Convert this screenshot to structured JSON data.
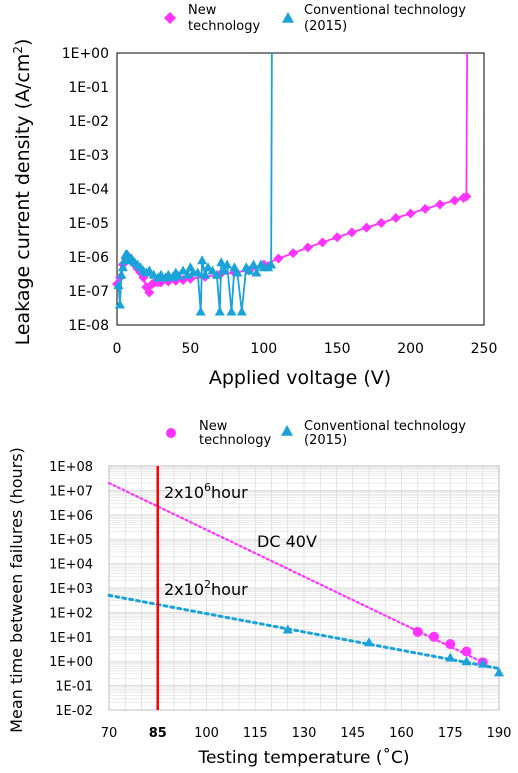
{
  "colors": {
    "new": "#ff33ff",
    "conventional": "#1aa3d9",
    "grid": "#d9d9d9",
    "marker85": "#ff0000"
  },
  "chart_data": [
    {
      "type": "scatter",
      "xlabel": "Applied voltage (V)",
      "ylabel_prefix": "Leakage current density (A/cm",
      "ylabel_sup": "2",
      "ylabel_suffix": ")",
      "xlim": [
        0,
        250
      ],
      "ylim": [
        1e-08,
        1
      ],
      "yscale": "log",
      "xticks": [
        "0",
        "50",
        "100",
        "150",
        "200",
        "250"
      ],
      "yticks": [
        "1E+00",
        "1E-01",
        "1E-02",
        "1E-03",
        "1E-04",
        "1E-05",
        "1E-06",
        "1E-07",
        "1E-08"
      ],
      "grid": false,
      "legend": {
        "placement": "top",
        "entries": [
          {
            "label_line1": "New",
            "label_line2": "technology",
            "marker": "diamond"
          },
          {
            "label_line1": "Conventional technology",
            "label_line2": "(2015)",
            "marker": "triangle"
          }
        ]
      },
      "series": [
        {
          "name": "New technology",
          "x": [
            0,
            2,
            4,
            6,
            8,
            10,
            12,
            14,
            16,
            18,
            20,
            22,
            24,
            26,
            28,
            30,
            35,
            40,
            45,
            50,
            60,
            70,
            80,
            90,
            100,
            110,
            120,
            130,
            140,
            150,
            160,
            170,
            180,
            190,
            200,
            210,
            220,
            230,
            236,
            238,
            238.5
          ],
          "y": [
            1.6e-07,
            2.5e-07,
            6e-07,
            9e-07,
            1e-06,
            8e-07,
            6e-07,
            4.5e-07,
            3.5e-07,
            2.5e-07,
            1.3e-07,
            9e-08,
            1.6e-07,
            1.8e-07,
            1.8e-07,
            1.8e-07,
            1.9e-07,
            2e-07,
            2.1e-07,
            2.3e-07,
            2.6e-07,
            3e-07,
            3.5e-07,
            4e-07,
            6e-07,
            9e-07,
            1.3e-06,
            1.9e-06,
            2.7e-06,
            3.8e-06,
            5.3e-06,
            7.3e-06,
            1e-05,
            1.4e-05,
            1.9e-05,
            2.6e-05,
            3.5e-05,
            4.6e-05,
            5.5e-05,
            6e-05,
            1
          ]
        },
        {
          "name": "Conventional technology (2015)",
          "x": [
            1,
            2,
            3,
            4,
            5,
            6,
            7,
            8,
            9,
            10,
            12,
            14,
            16,
            18,
            20,
            22,
            25,
            28,
            30,
            33,
            35,
            38,
            40,
            42,
            45,
            48,
            50,
            52,
            55,
            57,
            58,
            60,
            62,
            65,
            68,
            70,
            71,
            73,
            75,
            78,
            80,
            82,
            85,
            88,
            90,
            93,
            95,
            98,
            100,
            103,
            105,
            105.5
          ],
          "y": [
            1.5e-07,
            4e-08,
            3e-07,
            5e-07,
            8e-07,
            1.2e-06,
            1.2e-06,
            9e-07,
            8e-07,
            9e-07,
            7e-07,
            6e-07,
            5e-07,
            4e-07,
            3.5e-07,
            4e-07,
            3e-07,
            2.5e-07,
            3e-07,
            2.5e-07,
            3e-07,
            2.6e-07,
            3.5e-07,
            2.8e-07,
            4e-07,
            3e-07,
            5e-07,
            3.5e-07,
            3.5e-07,
            2.5e-08,
            8e-07,
            3e-07,
            5e-07,
            4e-07,
            3e-07,
            2.5e-08,
            7e-07,
            4e-07,
            6e-07,
            2.5e-08,
            5e-07,
            3.5e-07,
            2.5e-08,
            5e-07,
            4e-07,
            6e-07,
            3.5e-07,
            6e-07,
            5e-07,
            5e-07,
            6e-07,
            1
          ]
        }
      ]
    },
    {
      "type": "scatter",
      "xlabel": "Testing temperature (˚C)",
      "ylabel": "Mean time between failures (hours)",
      "xlim": [
        70,
        190
      ],
      "ylim": [
        0.01,
        100000000.0
      ],
      "yscale": "log",
      "xticks": [
        "70",
        "85",
        "100",
        "115",
        "130",
        "145",
        "160",
        "175",
        "190"
      ],
      "highlight_xtick": "85",
      "yticks": [
        "1E+08",
        "1E+07",
        "1E+06",
        "1E+05",
        "1E+04",
        "1E+03",
        "1E+02",
        "1E+01",
        "1E+00",
        "1E-01",
        "1E-02"
      ],
      "grid": true,
      "legend": {
        "placement": "top",
        "entries": [
          {
            "label_line1": "New",
            "label_line2": "technology",
            "marker": "circle"
          },
          {
            "label_line1": "Conventional technology",
            "label_line2": "(2015)",
            "marker": "triangle"
          }
        ]
      },
      "vline_x": 85,
      "annotations": [
        {
          "prefix": "2x10",
          "sup": "6",
          "suffix": "hour"
        },
        {
          "prefix": "2x10",
          "sup": "2",
          "suffix": "hour"
        },
        {
          "text": "DC 40V"
        }
      ],
      "series": [
        {
          "name": "New technology",
          "x": [
            165,
            170,
            175,
            180,
            185
          ],
          "y": [
            16,
            10,
            5,
            2.5,
            0.9
          ]
        },
        {
          "name": "Conventional technology (2015)",
          "x": [
            125,
            150,
            175,
            180,
            185,
            190
          ],
          "y": [
            20,
            6,
            1.4,
            1.0,
            0.8,
            0.35
          ]
        }
      ],
      "trendlines": [
        {
          "name": "New technology fit",
          "x": [
            70,
            185
          ],
          "y": [
            20000000,
            0.9
          ]
        },
        {
          "name": "Conventional technology fit",
          "x": [
            70,
            190
          ],
          "y": [
            500,
            0.5
          ]
        }
      ]
    }
  ]
}
